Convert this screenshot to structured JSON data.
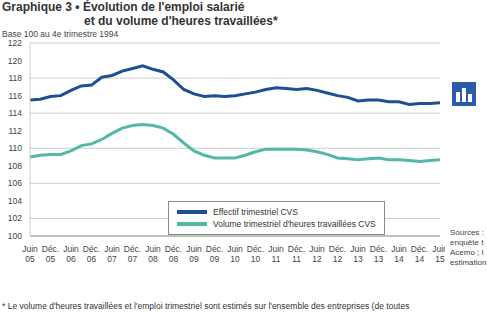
{
  "chart_data": {
    "type": "line",
    "title": [
      "Graphique 3 • Évolution de l'emploi salarié",
      "et du volume d'heures travaillées*"
    ],
    "subtitle": "Base 100 au 4e trimestre 1994",
    "footnote": "* Le volume d'heures travaillées et l'emploi trimestriel sont estimés sur l'ensemble des entreprises (de toutes",
    "source": [
      "Sources :",
      "enquête t",
      "Acemo ; I",
      "estimation"
    ],
    "categories": [
      "Juin 05",
      null,
      "Déc. 05",
      null,
      "Juin 06",
      null,
      "Déc. 06",
      null,
      "Juin 07",
      null,
      "Déc. 07",
      null,
      "Juin 08",
      null,
      "Déc. 08",
      null,
      "Juin 09",
      null,
      "Déc. 09",
      null,
      "Juin 10",
      null,
      "Déc. 10",
      null,
      "Juin 11",
      null,
      "Déc. 11",
      null,
      "Juin 12",
      null,
      "Déc. 12",
      null,
      "Juin 13",
      null,
      "Déc. 13",
      null,
      "Juin 14",
      null,
      "Déc. 14",
      null,
      "Juin 15"
    ],
    "series": [
      {
        "name": "Effectif trimestriel CVS",
        "color": "#1e4f91",
        "values": [
          115.5,
          115.6,
          115.9,
          116.0,
          116.6,
          117.1,
          117.2,
          118.1,
          118.3,
          118.8,
          119.1,
          119.4,
          119.0,
          118.7,
          117.8,
          116.7,
          116.2,
          115.9,
          116.0,
          115.9,
          116.0,
          116.2,
          116.4,
          116.7,
          116.9,
          116.8,
          116.7,
          116.8,
          116.6,
          116.3,
          116.0,
          115.8,
          115.4,
          115.5,
          115.5,
          115.3,
          115.3,
          115.0,
          115.1,
          115.1,
          115.2
        ]
      },
      {
        "name": "Volume trimestriel d'heures travaillées CVS",
        "color": "#52b8a8",
        "values": [
          109.0,
          109.2,
          109.3,
          109.3,
          109.7,
          110.3,
          110.5,
          111.0,
          111.7,
          112.3,
          112.6,
          112.7,
          112.6,
          112.3,
          111.6,
          110.6,
          109.7,
          109.2,
          108.9,
          108.9,
          108.9,
          109.2,
          109.6,
          109.9,
          109.9,
          109.9,
          109.9,
          109.8,
          109.6,
          109.3,
          108.9,
          108.8,
          108.7,
          108.8,
          108.9,
          108.7,
          108.7,
          108.6,
          108.5,
          108.6,
          108.7
        ]
      }
    ],
    "ylim": [
      100,
      122
    ],
    "yticks": [
      100,
      102,
      104,
      106,
      108,
      110,
      112,
      114,
      116,
      118,
      120,
      122
    ],
    "grid": true,
    "legend": "bottom"
  }
}
